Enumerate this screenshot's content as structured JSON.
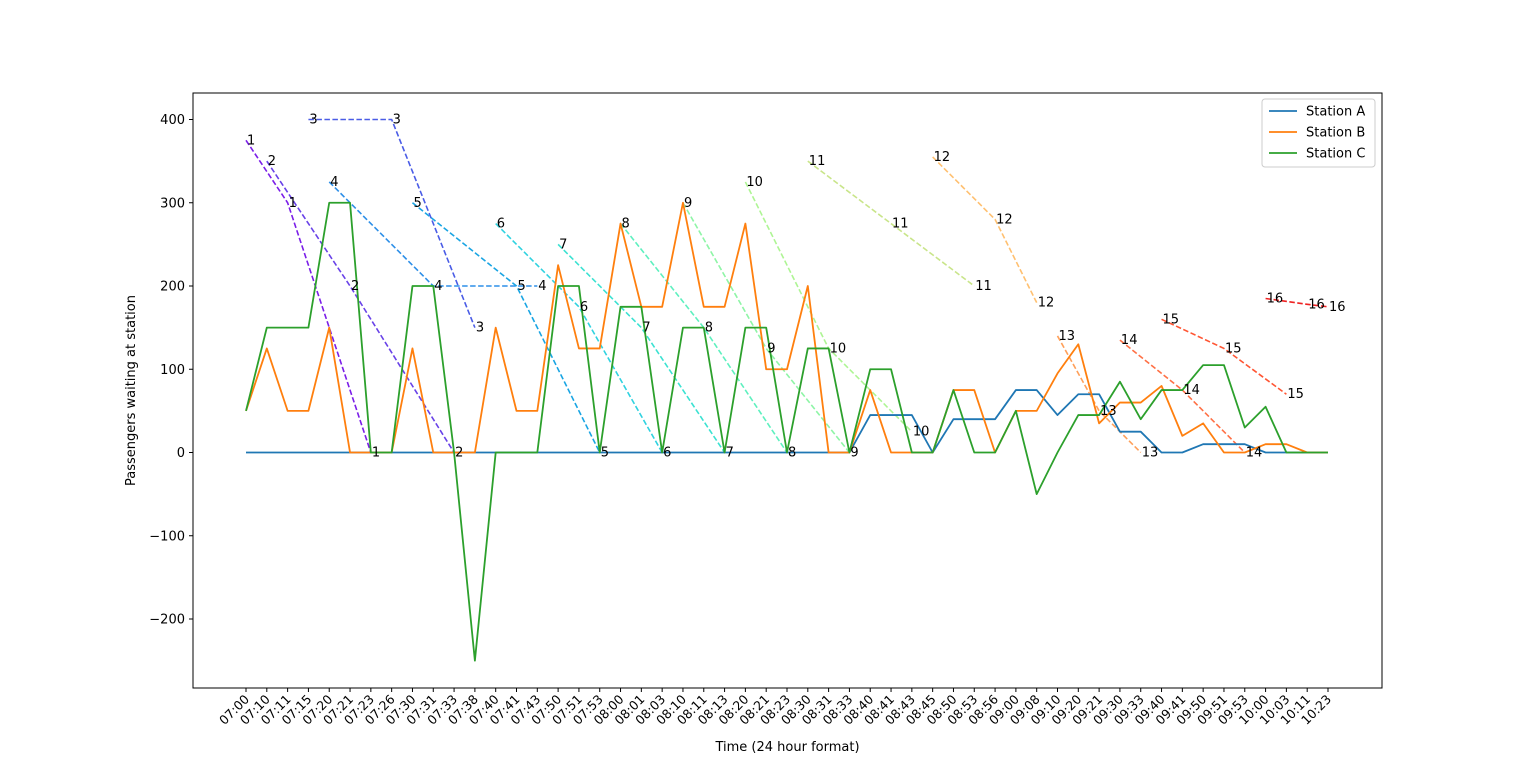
{
  "chart_data": {
    "type": "line",
    "xlabel": "Time (24 hour format)",
    "ylabel": "Passengers waiting at station",
    "ylim": [
      -280,
      430
    ],
    "yticks": [
      -200,
      -100,
      0,
      100,
      200,
      300,
      400
    ],
    "grid": false,
    "legend_placement": "top-right",
    "categories": [
      "07:00",
      "07:10",
      "07:11",
      "07:15",
      "07:20",
      "07:21",
      "07:23",
      "07:26",
      "07:30",
      "07:31",
      "07:33",
      "07:38",
      "07:40",
      "07:41",
      "07:43",
      "07:50",
      "07:51",
      "07:53",
      "08:00",
      "08:01",
      "08:03",
      "08:10",
      "08:11",
      "08:13",
      "08:20",
      "08:21",
      "08:23",
      "08:30",
      "08:31",
      "08:33",
      "08:40",
      "08:41",
      "08:43",
      "08:45",
      "08:50",
      "08:53",
      "08:56",
      "09:00",
      "09:08",
      "09:10",
      "09:20",
      "09:21",
      "09:30",
      "09:33",
      "09:40",
      "09:41",
      "09:50",
      "09:51",
      "09:53",
      "10:00",
      "10:03",
      "10:11",
      "10:23"
    ],
    "series": [
      {
        "name": "Station A",
        "color": "#1f77b4",
        "values": [
          0,
          0,
          0,
          0,
          0,
          0,
          0,
          0,
          0,
          0,
          0,
          0,
          0,
          0,
          0,
          0,
          0,
          0,
          0,
          0,
          0,
          0,
          0,
          0,
          0,
          0,
          0,
          0,
          0,
          0,
          45,
          45,
          45,
          0,
          40,
          40,
          40,
          75,
          75,
          45,
          70,
          70,
          25,
          25,
          0,
          0,
          10,
          10,
          10,
          0,
          0,
          0,
          0
        ]
      },
      {
        "name": "Station B",
        "color": "#ff7f0e",
        "values": [
          50,
          125,
          50,
          50,
          150,
          0,
          0,
          0,
          125,
          0,
          0,
          0,
          150,
          50,
          50,
          225,
          125,
          125,
          275,
          175,
          175,
          300,
          175,
          175,
          275,
          100,
          100,
          200,
          0,
          0,
          75,
          0,
          0,
          0,
          75,
          75,
          0,
          50,
          50,
          95,
          130,
          35,
          60,
          60,
          80,
          20,
          35,
          0,
          0,
          10,
          10,
          0,
          0
        ]
      },
      {
        "name": "Station C",
        "color": "#2ca02c",
        "values": [
          50,
          150,
          150,
          150,
          300,
          300,
          0,
          0,
          200,
          200,
          0,
          -250,
          0,
          0,
          0,
          200,
          200,
          0,
          175,
          175,
          0,
          150,
          150,
          0,
          150,
          150,
          0,
          125,
          125,
          0,
          100,
          100,
          0,
          0,
          75,
          0,
          0,
          50,
          -50,
          0,
          45,
          45,
          85,
          40,
          75,
          75,
          105,
          105,
          30,
          55,
          0,
          0,
          0
        ]
      }
    ],
    "train_lines": [
      {
        "label": "1",
        "color": "#7b1ee8",
        "points": [
          [
            0,
            375
          ],
          [
            2,
            300
          ],
          [
            6,
            0
          ]
        ],
        "labels": [
          "1",
          "1",
          "1"
        ]
      },
      {
        "label": "2",
        "color": "#6942e8",
        "points": [
          [
            1,
            350
          ],
          [
            5,
            200
          ],
          [
            10,
            0
          ]
        ],
        "labels": [
          "2",
          "2",
          "2"
        ]
      },
      {
        "label": "3",
        "color": "#4a5ce6",
        "points": [
          [
            3,
            400
          ],
          [
            7,
            400
          ],
          [
            11,
            150
          ]
        ],
        "labels": [
          "3",
          "3",
          "3"
        ]
      },
      {
        "label": "4",
        "color": "#2d8fe8",
        "points": [
          [
            4,
            325
          ],
          [
            9,
            200
          ],
          [
            14,
            200
          ]
        ],
        "labels": [
          "4",
          "4",
          "4"
        ]
      },
      {
        "label": "5",
        "color": "#1aa5e3",
        "points": [
          [
            8,
            300
          ],
          [
            13,
            200
          ],
          [
            17,
            0
          ]
        ],
        "labels": [
          "5",
          "5",
          "5"
        ]
      },
      {
        "label": "6",
        "color": "#2fd2e0",
        "points": [
          [
            12,
            275
          ],
          [
            16,
            175
          ],
          [
            20,
            0
          ]
        ],
        "labels": [
          "6",
          "6",
          "6"
        ]
      },
      {
        "label": "7",
        "color": "#3be2d2",
        "points": [
          [
            15,
            250
          ],
          [
            19,
            150
          ],
          [
            23,
            0
          ]
        ],
        "labels": [
          "7",
          "7",
          "7"
        ]
      },
      {
        "label": "8",
        "color": "#5ef0bf",
        "points": [
          [
            18,
            275
          ],
          [
            22,
            150
          ],
          [
            26,
            0
          ]
        ],
        "labels": [
          "8",
          "8",
          "8"
        ]
      },
      {
        "label": "9",
        "color": "#8ef5a6",
        "points": [
          [
            21,
            300
          ],
          [
            25,
            125
          ],
          [
            29,
            0
          ]
        ],
        "labels": [
          "9",
          "9",
          "9"
        ]
      },
      {
        "label": "10",
        "color": "#aef594",
        "points": [
          [
            24,
            325
          ],
          [
            28,
            125
          ],
          [
            32,
            25
          ]
        ],
        "labels": [
          "10",
          "10",
          "10"
        ]
      },
      {
        "label": "11",
        "color": "#c9e58a",
        "points": [
          [
            27,
            350
          ],
          [
            31,
            275
          ],
          [
            35,
            200
          ]
        ],
        "labels": [
          "11",
          "11",
          "11"
        ]
      },
      {
        "label": "12",
        "color": "#ffc070",
        "points": [
          [
            33,
            355
          ],
          [
            36,
            280
          ],
          [
            38,
            180
          ]
        ],
        "labels": [
          "12",
          "12",
          "12"
        ]
      },
      {
        "label": "13",
        "color": "#ffa05a",
        "points": [
          [
            39,
            140
          ],
          [
            41,
            50
          ],
          [
            43,
            0
          ]
        ],
        "labels": [
          "13",
          "13",
          "13"
        ]
      },
      {
        "label": "14",
        "color": "#ff7045",
        "points": [
          [
            42,
            135
          ],
          [
            45,
            75
          ],
          [
            48,
            0
          ]
        ],
        "labels": [
          "14",
          "14",
          "14"
        ]
      },
      {
        "label": "15",
        "color": "#ff5533",
        "points": [
          [
            44,
            160
          ],
          [
            47,
            125
          ],
          [
            50,
            70
          ]
        ],
        "labels": [
          "15",
          "15",
          "15"
        ]
      },
      {
        "label": "16",
        "color": "#ee2222",
        "points": [
          [
            49,
            185
          ],
          [
            51,
            178
          ],
          [
            52,
            175
          ]
        ],
        "labels": [
          "16",
          "16",
          "16"
        ]
      }
    ]
  }
}
